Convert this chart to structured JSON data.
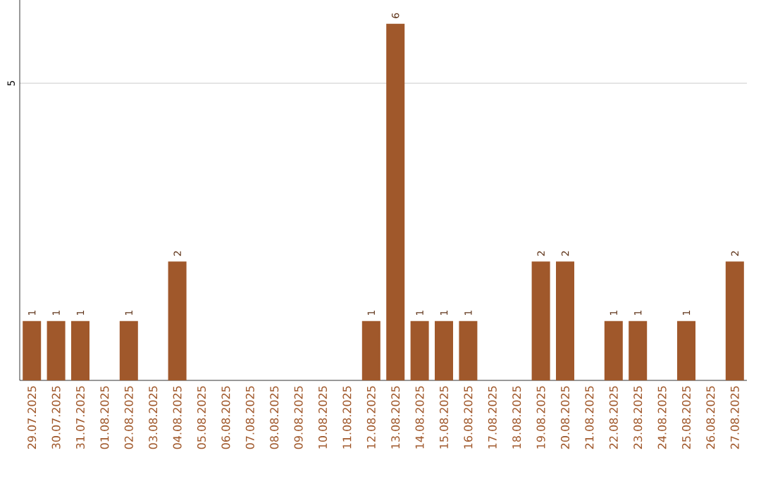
{
  "chart_data": {
    "type": "bar",
    "categories": [
      "29.07.2025",
      "30.07.2025",
      "31.07.2025",
      "01.08.2025",
      "02.08.2025",
      "03.08.2025",
      "04.08.2025",
      "05.08.2025",
      "06.08.2025",
      "07.08.2025",
      "08.08.2025",
      "09.08.2025",
      "10.08.2025",
      "11.08.2025",
      "12.08.2025",
      "13.08.2025",
      "14.08.2025",
      "15.08.2025",
      "16.08.2025",
      "17.08.2025",
      "18.08.2025",
      "19.08.2025",
      "20.08.2025",
      "21.08.2025",
      "22.08.2025",
      "23.08.2025",
      "24.08.2025",
      "25.08.2025",
      "26.08.2025",
      "27.08.2025"
    ],
    "values": [
      1,
      1,
      1,
      0,
      1,
      0,
      2,
      0,
      0,
      0,
      0,
      0,
      0,
      0,
      1,
      6,
      1,
      1,
      1,
      0,
      0,
      2,
      2,
      0,
      1,
      1,
      0,
      1,
      0,
      2
    ],
    "value_labels": [
      "1",
      "1",
      "1",
      null,
      "1",
      null,
      "2",
      null,
      null,
      null,
      null,
      null,
      null,
      null,
      "1",
      "6",
      "1",
      "1",
      "1",
      null,
      null,
      "2",
      "2",
      null,
      "1",
      "1",
      null,
      "1",
      null,
      "2"
    ],
    "color": "#a0582b",
    "ylim": [
      0,
      6.4
    ],
    "yticks": [
      5
    ],
    "grid": "y"
  }
}
